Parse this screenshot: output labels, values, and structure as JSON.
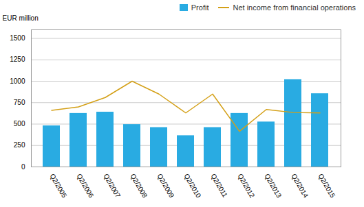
{
  "chart_data": {
    "type": "bar",
    "ylabel": "EUR million",
    "categories": [
      "Q2/2005",
      "Q2/2006",
      "Q2/2007",
      "Q2/2008",
      "Q2/2009",
      "Q2/2010",
      "Q2/2011",
      "Q2/2012",
      "Q2/2013",
      "Q2/2014",
      "Q2/2015"
    ],
    "series": [
      {
        "name": "Profit",
        "type": "bar",
        "color": "#29abe2",
        "values": [
          480,
          625,
          640,
          495,
          460,
          365,
          460,
          625,
          525,
          1020,
          855
        ]
      },
      {
        "name": "Net income from financial operations",
        "type": "line",
        "color": "#d4a017",
        "values": [
          660,
          700,
          810,
          1000,
          850,
          630,
          850,
          415,
          670,
          635,
          630
        ]
      }
    ],
    "ylim": [
      0,
      1600
    ],
    "yticks": [
      0,
      250,
      500,
      750,
      1000,
      1250,
      1500
    ],
    "grid": true,
    "legend": "upper right"
  }
}
